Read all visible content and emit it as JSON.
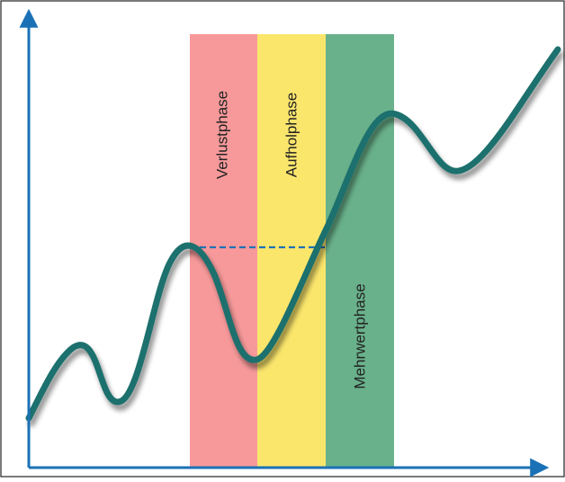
{
  "diagram": {
    "phases": [
      {
        "label": "Verlustphase",
        "color": "#f7999a"
      },
      {
        "label": "Aufholphase",
        "color": "#fbe66c"
      },
      {
        "label": "Mehrwertphase",
        "color": "#69b18b"
      }
    ],
    "curve_color": "#1c6f6d",
    "axis_color": "#1b71b6",
    "reference_line_style": "dashed"
  }
}
